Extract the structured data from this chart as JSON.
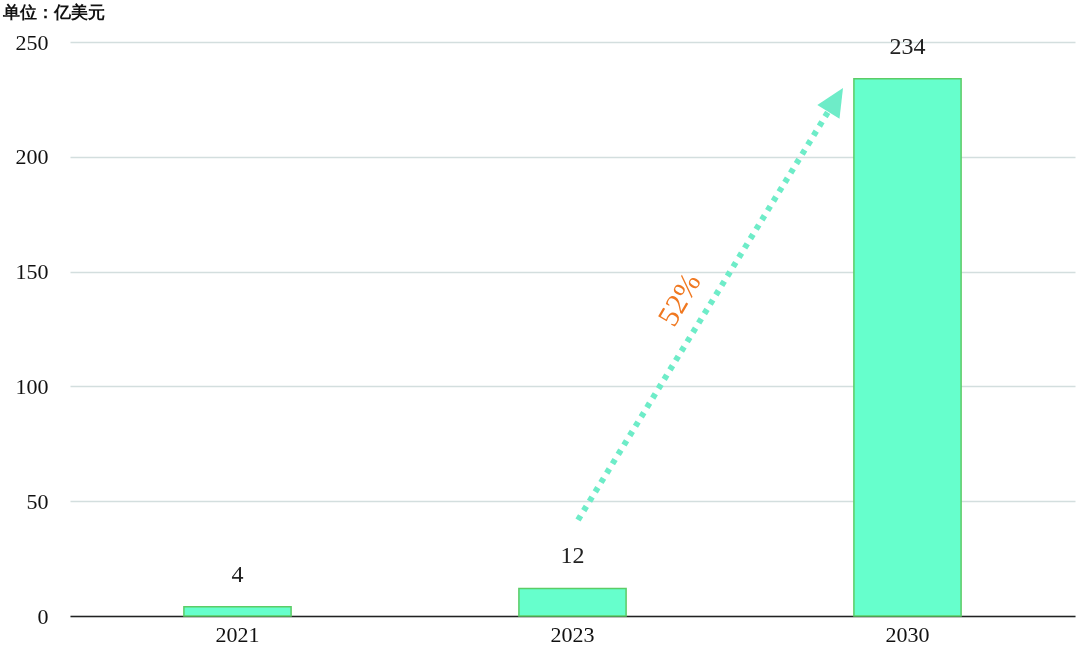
{
  "chart_data": {
    "type": "bar",
    "ylabel": "单位：亿美元",
    "categories": [
      "2021",
      "2023",
      "2030"
    ],
    "values": [
      4,
      12,
      234
    ],
    "color": "#66ffcc",
    "ylim": [
      0,
      250
    ],
    "yticks": [
      0,
      50,
      100,
      150,
      200,
      250
    ],
    "grid": "y",
    "data_labels": true,
    "annotations": [
      "52%"
    ]
  }
}
